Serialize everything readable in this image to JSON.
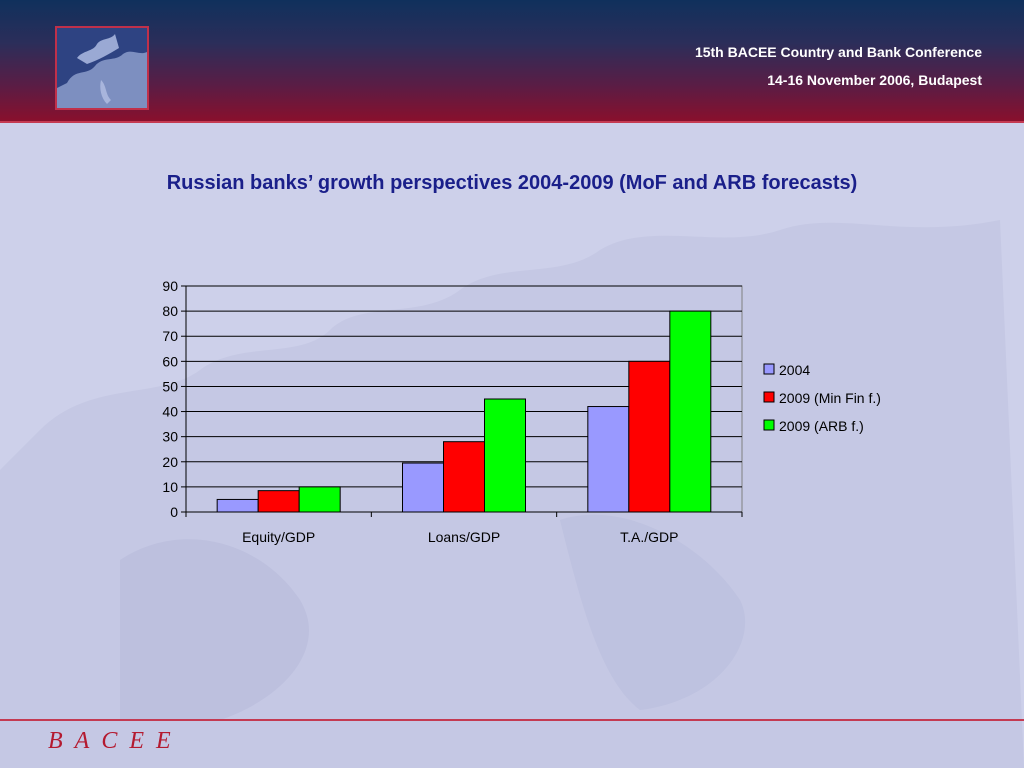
{
  "header": {
    "conference": "15th BACEE Country and Bank Conference",
    "date_place": "14-16 November 2006, Budapest"
  },
  "slide": {
    "title": "Russian banks’ growth perspectives 2004-2009 (MoF and ARB forecasts)"
  },
  "footer": {
    "brand": "BACEE"
  },
  "chart_data": {
    "type": "bar",
    "categories": [
      "Equity/GDP",
      "Loans/GDP",
      "T.A./GDP"
    ],
    "series": [
      {
        "name": "2004",
        "values": [
          5,
          19.5,
          42
        ],
        "color": "#9999ff"
      },
      {
        "name": "2009 (Min Fin f.)",
        "values": [
          8.5,
          28,
          60
        ],
        "color": "#ff0000"
      },
      {
        "name": "2009 (ARB f.)",
        "values": [
          10,
          45,
          80
        ],
        "color": "#00ff00"
      }
    ],
    "ylim": [
      0,
      90
    ],
    "yticks": [
      0,
      10,
      20,
      30,
      40,
      50,
      60,
      70,
      80,
      90
    ],
    "grid": true,
    "legend": "right"
  }
}
